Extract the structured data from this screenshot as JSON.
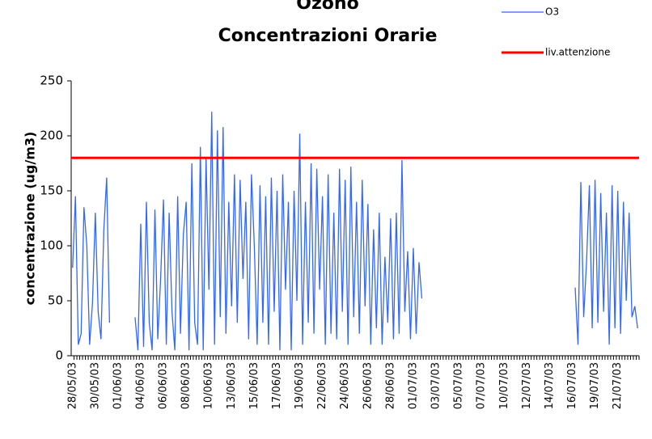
{
  "chart_data": {
    "type": "line",
    "title": "Ozono",
    "subtitle": "Concentrazioni Orarie",
    "y_label": "concentrazione (ug/m3)",
    "categories": [
      "28/05/03",
      null,
      null,
      null,
      null,
      null,
      null,
      null,
      "30/05/03",
      null,
      null,
      null,
      null,
      null,
      null,
      null,
      "01/06/03",
      null,
      null,
      null,
      null,
      null,
      null,
      null,
      "04/06/03",
      null,
      null,
      null,
      null,
      null,
      null,
      null,
      "06/06/03",
      null,
      null,
      null,
      null,
      null,
      null,
      null,
      "08/06/03",
      null,
      null,
      null,
      null,
      null,
      null,
      null,
      "10/06/03",
      null,
      null,
      null,
      null,
      null,
      null,
      null,
      "13/06/03",
      null,
      null,
      null,
      null,
      null,
      null,
      null,
      "15/06/03",
      null,
      null,
      null,
      null,
      null,
      null,
      null,
      "17/06/03",
      null,
      null,
      null,
      null,
      null,
      null,
      null,
      "19/06/03",
      null,
      null,
      null,
      null,
      null,
      null,
      null,
      "22/06/03",
      null,
      null,
      null,
      null,
      null,
      null,
      null,
      "24/06/03",
      null,
      null,
      null,
      null,
      null,
      null,
      null,
      "26/06/03",
      null,
      null,
      null,
      null,
      null,
      null,
      null,
      "28/06/03",
      null,
      null,
      null,
      null,
      null,
      null,
      null,
      "01/07/03",
      null,
      null,
      null,
      null,
      null,
      null,
      null,
      "03/07/03",
      null,
      null,
      null,
      null,
      null,
      null,
      null,
      "05/07/03",
      null,
      null,
      null,
      null,
      null,
      null,
      null,
      "07/07/03",
      null,
      null,
      null,
      null,
      null,
      null,
      null,
      "10/07/03",
      null,
      null,
      null,
      null,
      null,
      null,
      null,
      "12/07/03",
      null,
      null,
      null,
      null,
      null,
      null,
      null,
      "14/07/03",
      null,
      null,
      null,
      null,
      null,
      null,
      null,
      "16/07/03",
      null,
      null,
      null,
      null,
      null,
      null,
      null,
      "19/07/03",
      null,
      null,
      null,
      null,
      null,
      null,
      null,
      "21/07/03",
      null,
      null,
      null,
      null,
      null,
      null,
      null
    ],
    "series": [
      {
        "name": "O3",
        "color": "#3366ff",
        "values": [
          80,
          145,
          10,
          20,
          135,
          100,
          10,
          48,
          130,
          40,
          15,
          115,
          162,
          30,
          null,
          null,
          null,
          null,
          null,
          null,
          null,
          null,
          35,
          5,
          120,
          8,
          140,
          30,
          5,
          133,
          15,
          70,
          142,
          10,
          130,
          40,
          5,
          145,
          20,
          110,
          140,
          5,
          175,
          30,
          10,
          190,
          5,
          180,
          60,
          222,
          10,
          205,
          35,
          208,
          20,
          140,
          45,
          165,
          30,
          160,
          70,
          140,
          15,
          165,
          100,
          10,
          155,
          30,
          145,
          10,
          162,
          40,
          150,
          5,
          165,
          60,
          140,
          5,
          150,
          50,
          202,
          10,
          140,
          30,
          175,
          20,
          170,
          60,
          145,
          10,
          165,
          20,
          130,
          15,
          170,
          40,
          160,
          10,
          172,
          35,
          140,
          20,
          160,
          45,
          138,
          10,
          115,
          25,
          130,
          10,
          90,
          30,
          125,
          15,
          130,
          20,
          178,
          40,
          95,
          15,
          98,
          20,
          85,
          52,
          null,
          null,
          null,
          null,
          null,
          null,
          null,
          null,
          null,
          null,
          null,
          null,
          null,
          null,
          null,
          null,
          null,
          null,
          null,
          null,
          null,
          null,
          null,
          null,
          null,
          null,
          null,
          null,
          null,
          null,
          null,
          null,
          null,
          null,
          null,
          null,
          null,
          null,
          null,
          null,
          null,
          null,
          null,
          null,
          null,
          null,
          null,
          null,
          null,
          null,
          null,
          null,
          null,
          62,
          10,
          158,
          35,
          85,
          155,
          25,
          160,
          30,
          148,
          40,
          130,
          10,
          155,
          25,
          150,
          20,
          140,
          50,
          130,
          35,
          45,
          25
        ]
      }
    ],
    "reference_lines": [
      {
        "name": "liv.attenzione",
        "value": 180,
        "color": "#ff0000"
      }
    ],
    "ylim": [
      0,
      250
    ],
    "yticks": [
      0,
      50,
      100,
      150,
      200,
      250
    ],
    "grid": false
  }
}
